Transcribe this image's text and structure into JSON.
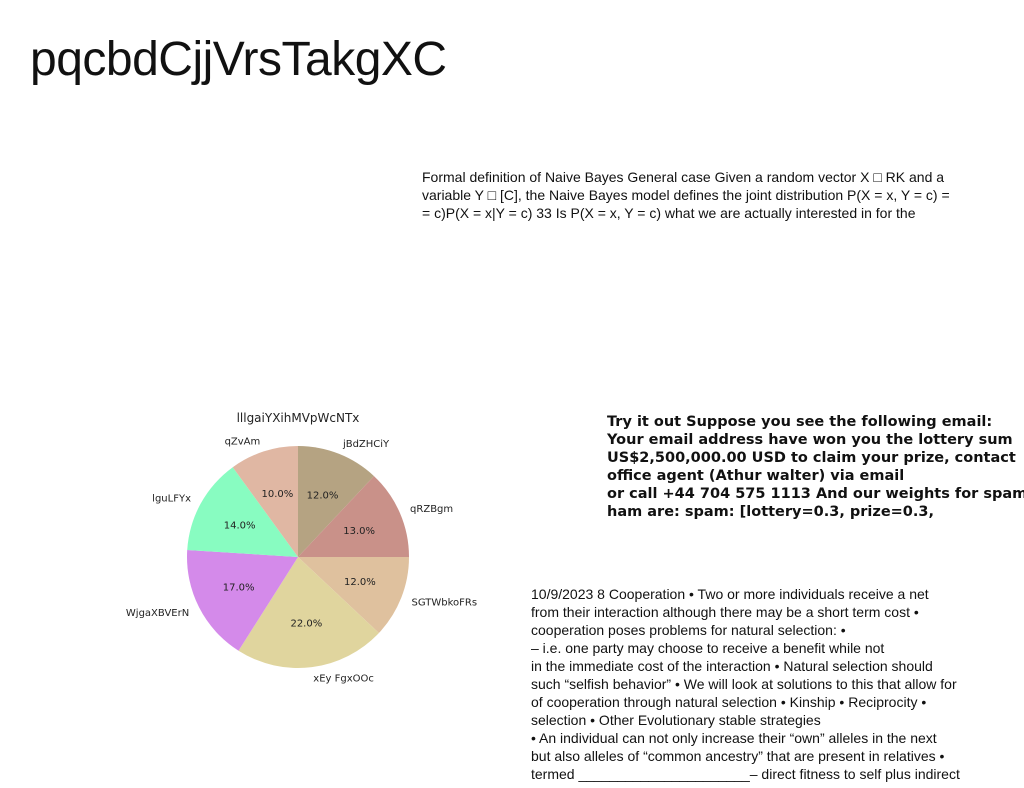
{
  "page": {
    "title": "pqcbdCjjVrsTakgXC"
  },
  "naive_bayes": {
    "lines": [
      "Formal definition of Naive Bayes General case Given a random vector X □ RK and a",
      "variable Y □ [C], the Naive Bayes model defines the joint distribution P(X = x, Y = c) =",
      "= c)P(X = x|Y = c) 33 Is P(X = x, Y = c) what we are actually interested in for the"
    ]
  },
  "spam": {
    "lines": [
      "Try it out Suppose you see the following email:",
      "Your email address have won you the lottery sum",
      "US$2,500,000.00 USD to claim your prize, contact",
      "office agent (Athur walter) via email",
      "or call +44 704 575 1113 And our weights for spam",
      "ham are: spam: [lottery=0.3, prize=0.3,"
    ]
  },
  "cooperation": {
    "lines": [
      "10/9/2023 8 Cooperation • Two or more individuals receive a net",
      "from their interaction although there may be a short term cost •",
      "cooperation poses problems for natural selection: •",
      "– i.e. one party may choose to receive a benefit while not",
      "in the immediate cost of the interaction • Natural selection should",
      "such “selfish behavior” • We will look at solutions to this that allow for",
      "of cooperation through natural selection • Kinship • Reciprocity •",
      "selection • Other Evolutionary stable strategies",
      "• An individual can not only increase their “own” alleles in the next",
      "but also alleles of “common ancestry” that are present in relatives •",
      "termed ______________________– direct fitness to self plus indirect"
    ]
  },
  "chart_data": {
    "type": "pie",
    "title": "lllgaiYXihMVpWcNTx",
    "start_angle_deg": 90,
    "direction": "clockwise",
    "slices": [
      {
        "label": "jBdZHCiY",
        "value": 12.0,
        "pct_label": "12.0%",
        "color": "#b5a382"
      },
      {
        "label": "qRZBgm",
        "value": 13.0,
        "pct_label": "13.0%",
        "color": "#c99189"
      },
      {
        "label": "SGTWbkoFRs",
        "value": 12.0,
        "pct_label": "12.0%",
        "color": "#dfc19e"
      },
      {
        "label": "xEy FgxOOc",
        "value": 22.0,
        "pct_label": "22.0%",
        "color": "#e0d59e"
      },
      {
        "label": "WjgaXBVErN",
        "value": 17.0,
        "pct_label": "17.0%",
        "color": "#d48aea"
      },
      {
        "label": "lguLFYx",
        "value": 14.0,
        "pct_label": "14.0%",
        "color": "#88fcc1"
      },
      {
        "label": "qZvAm",
        "value": 10.0,
        "pct_label": "10.0%",
        "color": "#e0b7a3"
      }
    ]
  }
}
